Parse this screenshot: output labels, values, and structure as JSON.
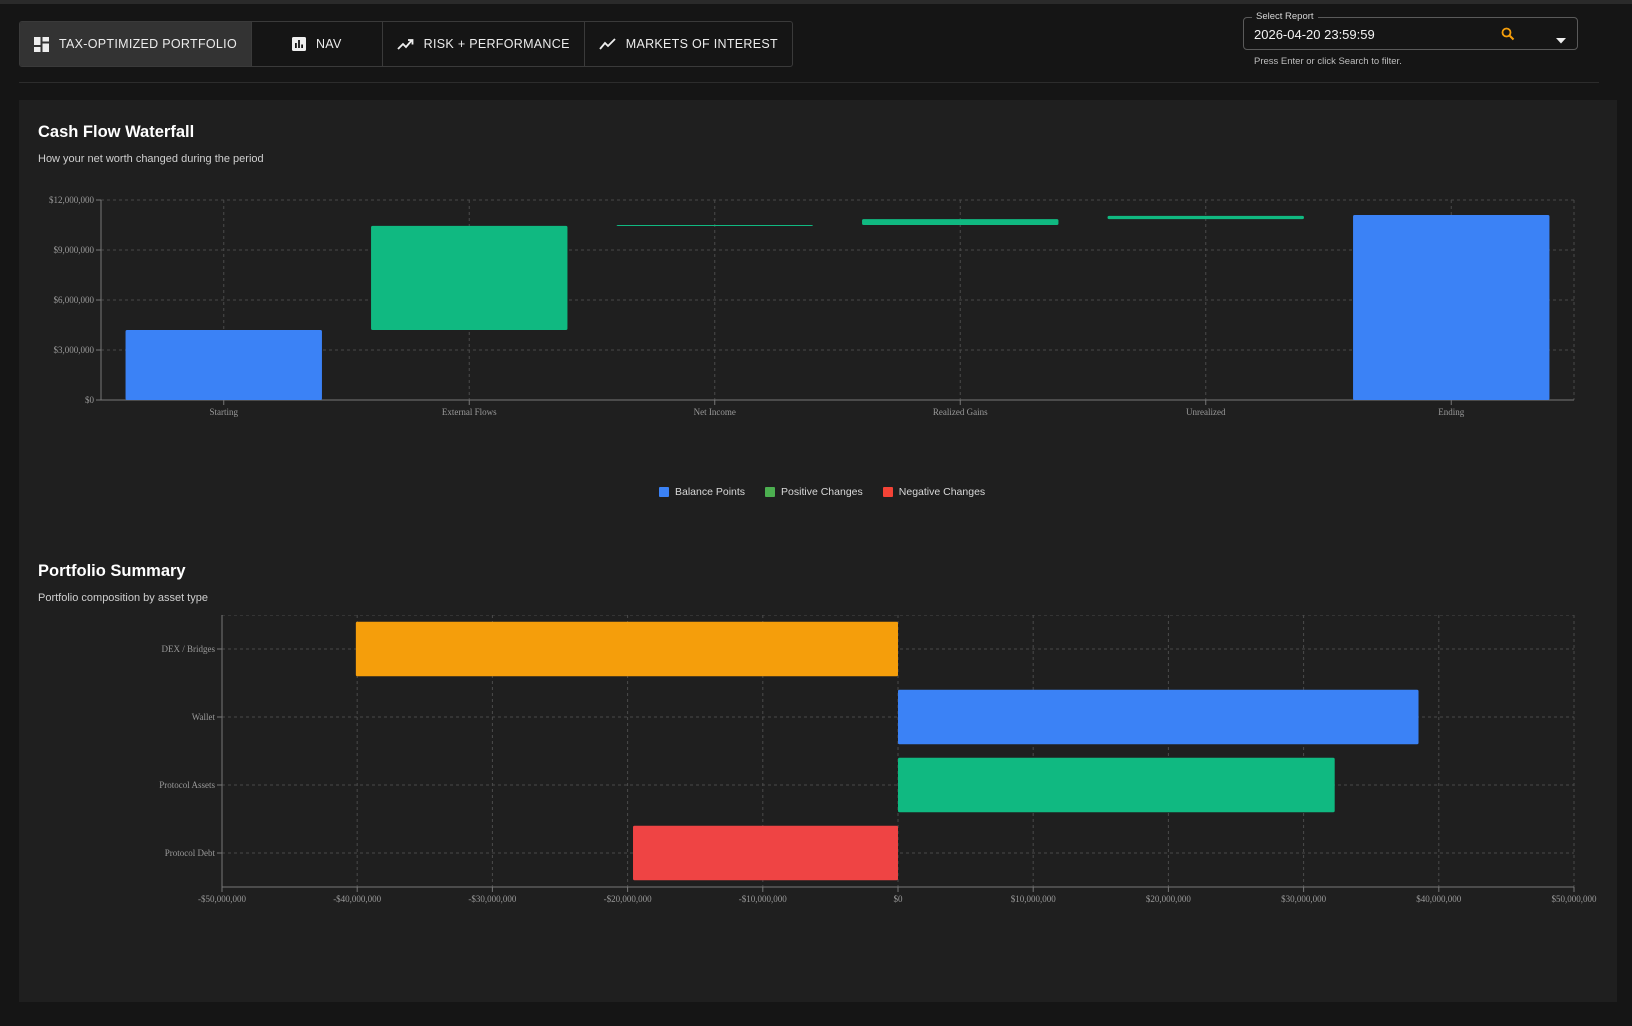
{
  "tabs": [
    {
      "label": "TAX-OPTIMIZED PORTFOLIO",
      "icon": "dashboard-icon",
      "active": true
    },
    {
      "label": "NAV",
      "icon": "bar-chart-icon",
      "active": false
    },
    {
      "label": "RISK + PERFORMANCE",
      "icon": "trending-up-icon",
      "active": false
    },
    {
      "label": "MARKETS OF INTEREST",
      "icon": "line-chart-icon",
      "active": false
    }
  ],
  "report_select": {
    "label": "Select Report",
    "value": "2026-04-20 23:59:59",
    "help": "Press Enter or click Search to filter."
  },
  "colors": {
    "balance": "#3b82f6",
    "positive": "#10b981",
    "negative": "#ef4444",
    "accent": "#f59e0b"
  },
  "waterfall": {
    "title": "Cash Flow Waterfall",
    "subtitle": "How your net worth changed during the period",
    "legend": [
      {
        "label": "Balance Points",
        "color": "#3b82f6"
      },
      {
        "label": "Positive Changes",
        "color": "#4caf50"
      },
      {
        "label": "Negative Changes",
        "color": "#f44336"
      }
    ]
  },
  "summary": {
    "title": "Portfolio Summary",
    "subtitle": "Portfolio composition by asset type"
  },
  "chart_data": [
    {
      "type": "bar",
      "subtype": "waterfall",
      "title": "Cash Flow Waterfall",
      "categories": [
        "Starting",
        "External Flows",
        "Net Income",
        "Realized Gains",
        "Unrealized",
        "Ending"
      ],
      "bars": [
        {
          "category": "Starting",
          "kind": "balance",
          "start": 0,
          "end": 4200000
        },
        {
          "category": "External Flows",
          "kind": "positive",
          "start": 4200000,
          "end": 10450000
        },
        {
          "category": "Net Income",
          "kind": "positive",
          "start": 10450000,
          "end": 10500000
        },
        {
          "category": "Realized Gains",
          "kind": "positive",
          "start": 10500000,
          "end": 10850000
        },
        {
          "category": "Unrealized",
          "kind": "positive",
          "start": 10850000,
          "end": 11050000
        },
        {
          "category": "Ending",
          "kind": "balance",
          "start": 0,
          "end": 11100000
        }
      ],
      "ylim": [
        0,
        12000000
      ],
      "yticks": [
        0,
        3000000,
        6000000,
        9000000,
        12000000
      ],
      "ytick_labels": [
        "$0",
        "$3,000,000",
        "$6,000,000",
        "$9,000,000",
        "$12,000,000"
      ],
      "grid": true,
      "legend_position": "bottom"
    },
    {
      "type": "bar",
      "orientation": "horizontal",
      "title": "Portfolio Summary",
      "categories": [
        "DEX / Bridges",
        "Wallet",
        "Protocol Assets",
        "Protocol Debt"
      ],
      "values": [
        -40100000,
        38500000,
        32300000,
        -19600000
      ],
      "colors": [
        "#f59e0b",
        "#3b82f6",
        "#10b981",
        "#ef4444"
      ],
      "xlim": [
        -50000000,
        50000000
      ],
      "xticks": [
        -50000000,
        -40000000,
        -30000000,
        -20000000,
        -10000000,
        0,
        10000000,
        20000000,
        30000000,
        40000000,
        50000000
      ],
      "xtick_labels": [
        "-$50,000,000",
        "-$40,000,000",
        "-$30,000,000",
        "-$20,000,000",
        "-$10,000,000",
        "$0",
        "$10,000,000",
        "$20,000,000",
        "$30,000,000",
        "$40,000,000",
        "$50,000,000"
      ],
      "grid": true
    }
  ]
}
